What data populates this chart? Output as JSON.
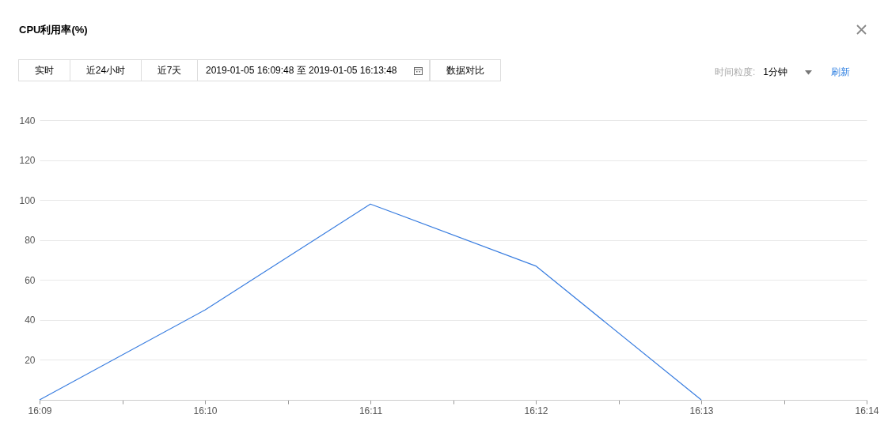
{
  "chart_data": {
    "type": "line",
    "title": "CPU利用率(%)",
    "annotations": [
      "实时",
      "近24小时",
      "近7天",
      "2019-01-05 16:09:48 至 2019-01-05 16:13:48",
      "数据对比",
      "时间粒度:",
      "1分钟",
      "刷新"
    ],
    "x": [
      "2019-01-05T16:09",
      "2019-01-05T16:10",
      "2019-01-05T16:11",
      "2019-01-05T16:12",
      "2019-01-05T16:13"
    ],
    "series": [
      {
        "color": "#3a7ee0",
        "values": [
          0,
          45,
          98,
          67,
          0
        ]
      }
    ],
    "xlim": [
      "2019-01-05T16:09",
      "2019-01-05T16:14"
    ],
    "xticks": [
      {
        "value": "2019-01-05T16:09",
        "label": "16:09"
      },
      {
        "value": "2019-01-05T16:09:30",
        "label": null
      },
      {
        "value": "2019-01-05T16:10",
        "label": "16:10"
      },
      {
        "value": "2019-01-05T16:10:30",
        "label": null
      },
      {
        "value": "2019-01-05T16:11",
        "label": "16:11"
      },
      {
        "value": "2019-01-05T16:11:30",
        "label": null
      },
      {
        "value": "2019-01-05T16:12",
        "label": "16:12"
      },
      {
        "value": "2019-01-05T16:12:30",
        "label": null
      },
      {
        "value": "2019-01-05T16:13",
        "label": "16:13"
      },
      {
        "value": "2019-01-05T16:13:30",
        "label": null
      },
      {
        "value": "2019-01-05T16:14",
        "label": "16:14"
      }
    ],
    "ylim": [
      0,
      140
    ],
    "yticks": [
      {
        "value": 0,
        "label": null
      },
      20,
      40,
      60,
      80,
      100,
      120,
      140
    ],
    "grid": "y",
    "marker": "none",
    "line_style": "solid"
  }
}
